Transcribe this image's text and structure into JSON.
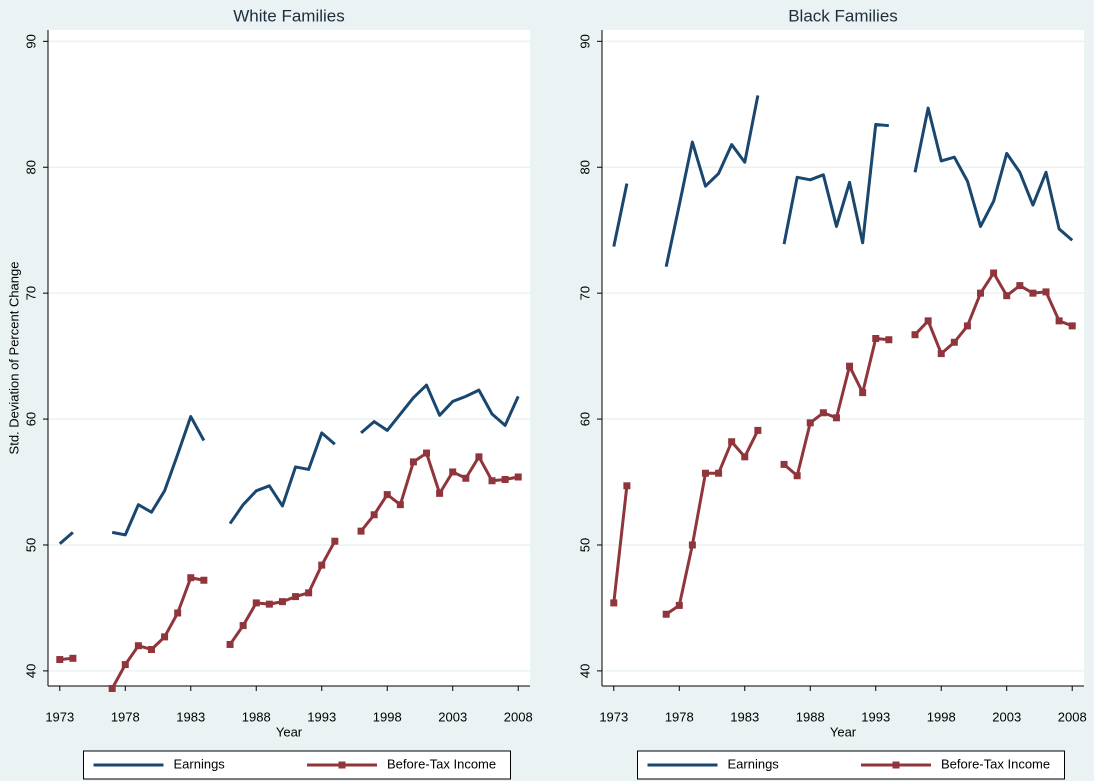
{
  "chart_data": [
    {
      "type": "line",
      "title": "White Families",
      "xlabel": "Year",
      "ylabel": "Std. Deviation of Percent Change",
      "x": [
        1973,
        1974,
        1975,
        1976,
        1977,
        1978,
        1979,
        1980,
        1981,
        1982,
        1983,
        1984,
        1985,
        1986,
        1987,
        1988,
        1989,
        1990,
        1991,
        1992,
        1993,
        1994,
        1995,
        1996,
        1997,
        1998,
        1999,
        2000,
        2001,
        2002,
        2003,
        2004,
        2005,
        2006,
        2007,
        2008
      ],
      "series": [
        {
          "name": "Earnings",
          "color": "#1a476f",
          "marker": "none",
          "values": [
            50.1,
            51.0,
            null,
            null,
            51.0,
            50.8,
            53.2,
            52.6,
            54.3,
            57.2,
            60.2,
            58.3,
            null,
            51.7,
            53.2,
            54.3,
            54.7,
            53.1,
            56.2,
            56.0,
            58.9,
            58.0,
            null,
            58.9,
            59.8,
            59.1,
            60.4,
            61.7,
            62.7,
            60.3,
            61.4,
            61.8,
            62.3,
            60.4,
            59.5,
            61.8
          ]
        },
        {
          "name": "Before-Tax Income",
          "color": "#90353b",
          "marker": "square",
          "values": [
            40.9,
            41.0,
            null,
            null,
            38.6,
            40.5,
            42.0,
            41.7,
            42.7,
            44.6,
            47.4,
            47.2,
            null,
            42.1,
            43.6,
            45.4,
            45.3,
            45.5,
            45.9,
            46.2,
            48.4,
            50.3,
            null,
            51.1,
            52.4,
            54.0,
            53.2,
            56.6,
            57.3,
            54.1,
            55.8,
            55.3,
            57.0,
            55.1,
            55.2,
            55.4
          ]
        }
      ],
      "xlim": [
        1972.1,
        2008.9
      ],
      "xticks": [
        1973,
        1978,
        1983,
        1988,
        1993,
        1998,
        2003,
        2008
      ],
      "ylim": [
        38.8,
        90.9
      ],
      "yticks": [
        40,
        50,
        60,
        70,
        80,
        90
      ],
      "grid": true,
      "legend": "bottom"
    },
    {
      "type": "line",
      "title": "Black Families",
      "xlabel": "Year",
      "x": [
        1973,
        1974,
        1975,
        1976,
        1977,
        1978,
        1979,
        1980,
        1981,
        1982,
        1983,
        1984,
        1985,
        1986,
        1987,
        1988,
        1989,
        1990,
        1991,
        1992,
        1993,
        1994,
        1995,
        1996,
        1997,
        1998,
        1999,
        2000,
        2001,
        2002,
        2003,
        2004,
        2005,
        2006,
        2007,
        2008
      ],
      "series": [
        {
          "name": "Earnings",
          "color": "#1a476f",
          "marker": "none",
          "values": [
            73.7,
            78.7,
            null,
            null,
            72.1,
            77.0,
            82.0,
            78.5,
            79.5,
            81.8,
            80.4,
            85.7,
            null,
            73.9,
            79.2,
            79.0,
            79.4,
            75.3,
            78.8,
            74.0,
            83.4,
            83.3,
            null,
            79.6,
            84.7,
            80.5,
            80.8,
            78.9,
            75.3,
            77.3,
            81.1,
            79.6,
            77.0,
            79.6,
            75.1,
            74.2
          ]
        },
        {
          "name": "Before-Tax Income",
          "color": "#90353b",
          "marker": "square",
          "values": [
            45.4,
            54.7,
            null,
            null,
            44.5,
            45.2,
            50.0,
            55.7,
            55.7,
            58.2,
            57.0,
            59.1,
            null,
            56.4,
            55.5,
            59.7,
            60.5,
            60.1,
            64.2,
            62.1,
            66.4,
            66.3,
            null,
            66.7,
            67.8,
            65.2,
            66.1,
            67.4,
            70.0,
            71.6,
            69.8,
            70.6,
            70.0,
            70.1,
            67.8,
            67.4
          ]
        }
      ],
      "xlim": [
        1972.1,
        2008.9
      ],
      "xticks": [
        1973,
        1978,
        1983,
        1988,
        1993,
        1998,
        2003,
        2008
      ],
      "ylim": [
        38.8,
        90.9
      ],
      "yticks": [
        40,
        50,
        60,
        70,
        80,
        90
      ],
      "grid": true,
      "legend": "bottom"
    }
  ]
}
